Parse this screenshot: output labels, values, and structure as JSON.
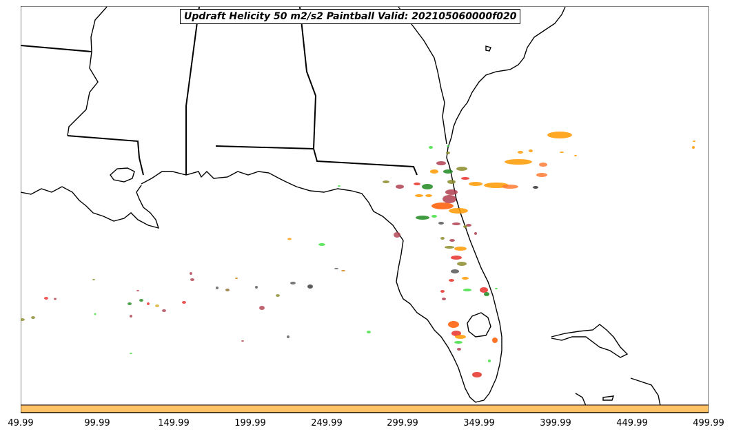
{
  "title": "Updraft Helicity 50 m2/s2 Paintball Valid: 202105060000f020",
  "colorbar": {
    "color": "#ffc266"
  },
  "chart_data": {
    "type": "scatter",
    "title": "Updraft Helicity 50 m2/s2 Paintball Valid: 202105060000f020",
    "xlabel": "",
    "ylabel": "",
    "xlim": [
      49.99,
      499.99
    ],
    "xticks": [
      "49.99",
      "99.99",
      "149.99",
      "199.99",
      "249.99",
      "299.99",
      "349.99",
      "399.99",
      "449.99",
      "499.99"
    ],
    "grid": false,
    "member_colors": [
      "#ff9900",
      "#e8302a",
      "#1f8a1f",
      "#3fe03f",
      "#8b8b2a",
      "#b04050",
      "#cc7a00"
    ]
  }
}
